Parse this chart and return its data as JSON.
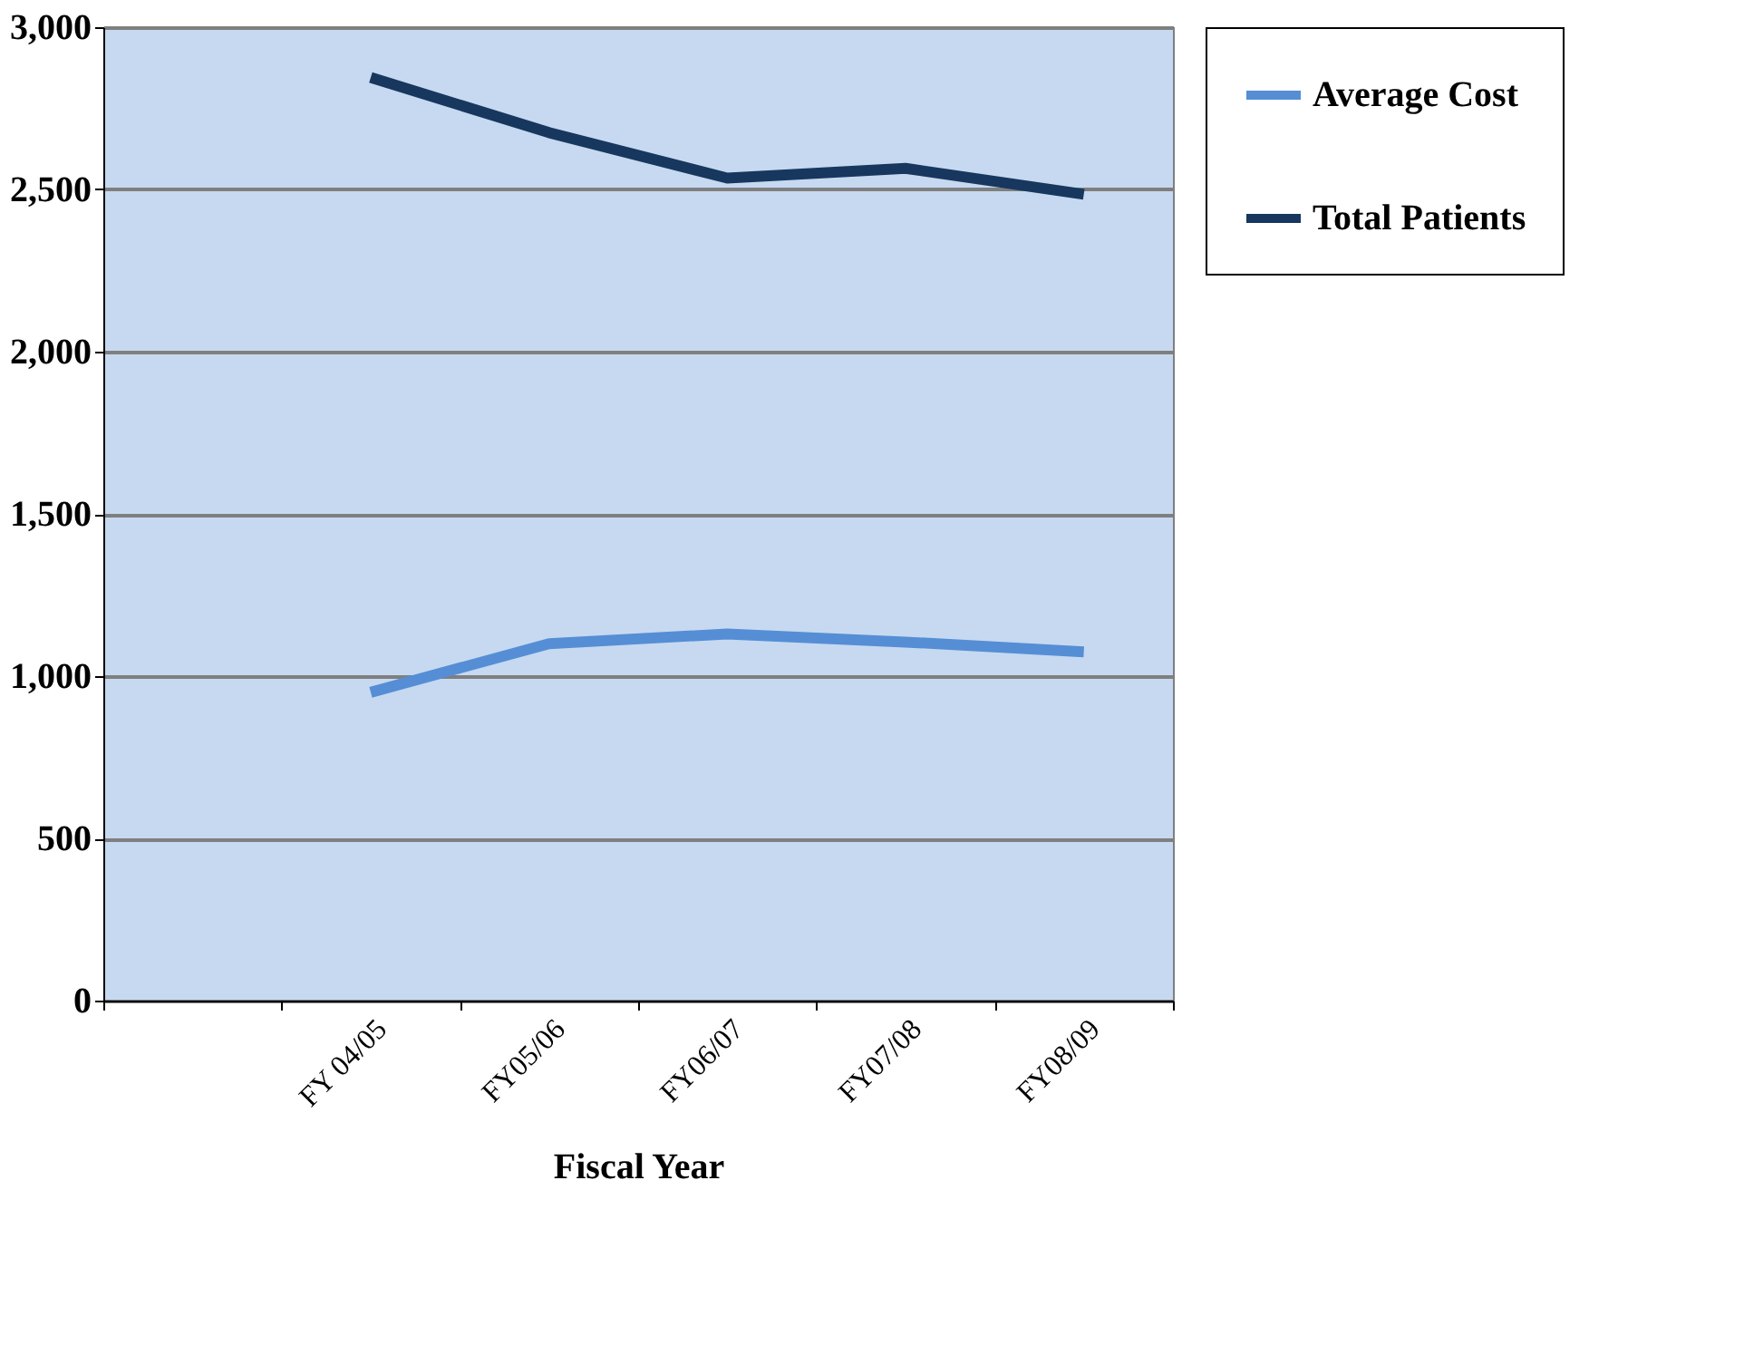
{
  "chart_data": {
    "type": "line",
    "xlabel": "Fiscal Year",
    "categories": [
      null,
      "FY 04/05",
      "FY05/06",
      "FY06/07",
      "FY07/08",
      "FY08/09"
    ],
    "series": [
      {
        "name": "Average Cost",
        "color": "#558ed5",
        "values": [
          null,
          950,
          1100,
          1130,
          1105,
          1075
        ]
      },
      {
        "name": "Total Patients",
        "color": "#17375e",
        "values": [
          null,
          2845,
          2675,
          2535,
          2565,
          2485
        ]
      }
    ],
    "ylim": [
      0,
      3000
    ],
    "yticks": [
      {
        "value": 0,
        "label": "0"
      },
      {
        "value": 500,
        "label": "500"
      },
      {
        "value": 1000,
        "label": "1,000"
      },
      {
        "value": 1500,
        "label": "1,500"
      },
      {
        "value": 2000,
        "label": "2,000"
      },
      {
        "value": 2500,
        "label": "2,500"
      },
      {
        "value": 3000,
        "label": "3,000"
      }
    ],
    "grid": "y",
    "legend": "right",
    "marker": "none",
    "line_style": "solid"
  }
}
